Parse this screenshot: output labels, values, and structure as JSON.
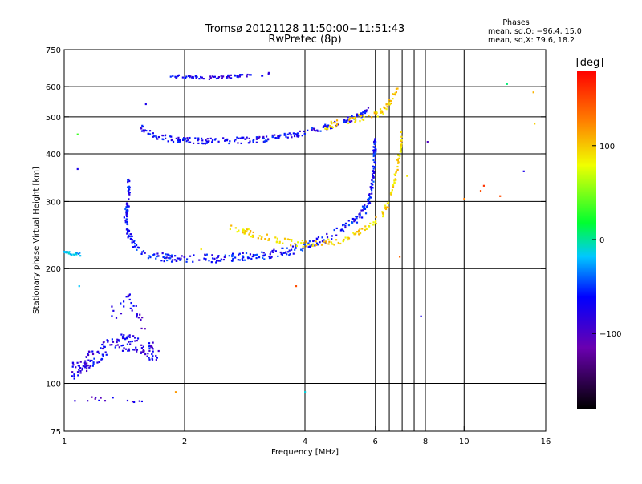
{
  "chart_data": {
    "type": "scatter",
    "title": "Tromsø 20121128 11:50:00−11:51:43",
    "subtitle": "RwPretec (8p)",
    "xlabel": "Frequency [MHz]",
    "ylabel": "Stationary phase Virtual Height [km]",
    "x_scale": "log",
    "y_scale": "log",
    "xlim": [
      1,
      16
    ],
    "ylim": [
      75,
      750
    ],
    "x_ticks": [
      {
        "value": 1,
        "label": "1"
      },
      {
        "value": 2,
        "label": "2"
      },
      {
        "value": 4,
        "label": "4"
      },
      {
        "value": 6,
        "label": "6"
      },
      {
        "value": 8,
        "label": "8"
      },
      {
        "value": 10,
        "label": "10"
      },
      {
        "value": 16,
        "label": "16"
      }
    ],
    "x_grid": [
      2,
      4,
      6,
      6.5,
      7,
      7.5,
      8,
      10
    ],
    "y_ticks": [
      {
        "value": 75,
        "label": "75"
      },
      {
        "value": 100,
        "label": "100"
      },
      {
        "value": 200,
        "label": "200"
      },
      {
        "value": 300,
        "label": "300"
      },
      {
        "value": 400,
        "label": "400"
      },
      {
        "value": 500,
        "label": "500"
      },
      {
        "value": 600,
        "label": "600"
      },
      {
        "value": 750,
        "label": "750"
      }
    ],
    "y_grid": [
      100,
      200,
      300,
      400,
      500,
      600
    ],
    "grid": true,
    "legend": {
      "title": "Phases",
      "lines": [
        "mean, sd,O: −96.4, 15.0",
        "mean, sd,X:  79.6, 18.2"
      ]
    },
    "colorbar": {
      "label": "[deg]",
      "range": [
        -180,
        180
      ],
      "ticks": [
        {
          "value": 100,
          "label": "100"
        },
        {
          "value": 0,
          "label": "0"
        },
        {
          "value": -100,
          "label": "−100"
        }
      ]
    },
    "traces": [
      {
        "points": [
          [
            1.8,
            640
          ],
          [
            2.0,
            636
          ],
          [
            2.2,
            633
          ],
          [
            2.5,
            636
          ],
          [
            2.8,
            642
          ],
          [
            3.1,
            647
          ],
          [
            3.3,
            650
          ]
        ],
        "phase": -110,
        "count": 70,
        "jitter": 0.01
      },
      {
        "points": [
          [
            1.55,
            470
          ],
          [
            1.7,
            445
          ],
          [
            1.9,
            435
          ],
          [
            2.2,
            432
          ],
          [
            2.5,
            433
          ],
          [
            2.8,
            434
          ],
          [
            3.2,
            438
          ],
          [
            3.6,
            445
          ],
          [
            4.0,
            455
          ],
          [
            4.5,
            470
          ],
          [
            5.0,
            485
          ],
          [
            5.5,
            505
          ],
          [
            5.8,
            525
          ]
        ],
        "phase": -105,
        "count": 230,
        "jitter": 0.018
      },
      {
        "points": [
          [
            4.4,
            470
          ],
          [
            5.0,
            485
          ],
          [
            5.6,
            500
          ],
          [
            6.0,
            505
          ],
          [
            6.3,
            520
          ],
          [
            6.6,
            555
          ],
          [
            6.8,
            590
          ]
        ],
        "phase": 100,
        "count": 70,
        "jitter": 0.02
      },
      {
        "points": [
          [
            1.45,
            340
          ],
          [
            1.45,
            300
          ],
          [
            1.42,
            270
          ],
          [
            1.45,
            245
          ],
          [
            1.5,
            230
          ],
          [
            1.6,
            218
          ],
          [
            1.8,
            213
          ],
          [
            2.0,
            212
          ],
          [
            2.4,
            213
          ],
          [
            2.8,
            215
          ],
          [
            3.2,
            217
          ],
          [
            3.6,
            222
          ],
          [
            4.0,
            228
          ],
          [
            4.5,
            240
          ],
          [
            5.0,
            255
          ],
          [
            5.4,
            270
          ],
          [
            5.7,
            290
          ],
          [
            5.85,
            320
          ],
          [
            5.95,
            370
          ],
          [
            6.0,
            450
          ]
        ],
        "phase": -100,
        "count": 380,
        "jitter": 0.025
      },
      {
        "points": [
          [
            2.6,
            258
          ],
          [
            3.0,
            245
          ],
          [
            3.4,
            238
          ],
          [
            3.8,
            233
          ],
          [
            4.3,
            232
          ],
          [
            4.8,
            236
          ],
          [
            5.3,
            245
          ],
          [
            5.8,
            258
          ],
          [
            6.2,
            275
          ],
          [
            6.5,
            300
          ],
          [
            6.7,
            340
          ],
          [
            6.9,
            400
          ],
          [
            7.0,
            450
          ]
        ],
        "phase": 95,
        "count": 170,
        "jitter": 0.02
      },
      {
        "points": [
          [
            1.05,
            107
          ],
          [
            1.15,
            115
          ],
          [
            1.25,
            122
          ],
          [
            1.35,
            128
          ],
          [
            1.45,
            128
          ],
          [
            1.55,
            125
          ],
          [
            1.65,
            122
          ],
          [
            1.7,
            118
          ]
        ],
        "phase": -110,
        "count": 160,
        "jitter": 0.05
      },
      {
        "points": [
          [
            1.0,
            222
          ],
          [
            1.05,
            219
          ],
          [
            1.1,
            218
          ]
        ],
        "phase": -60,
        "count": 22,
        "jitter": 0.01
      },
      {
        "points": [
          [
            1.05,
            90
          ],
          [
            1.4,
            92
          ],
          [
            1.6,
            90
          ]
        ],
        "phase": -120,
        "count": 14,
        "jitter": 0.02
      },
      {
        "points": [
          [
            1.3,
            150
          ],
          [
            1.45,
            165
          ],
          [
            1.6,
            140
          ]
        ],
        "phase": -115,
        "count": 28,
        "jitter": 0.04
      }
    ],
    "points": [
      [
        1.08,
        365,
        -110
      ],
      [
        1.08,
        450,
        20
      ],
      [
        1.09,
        180,
        -60
      ],
      [
        1.6,
        540,
        -110
      ],
      [
        1.9,
        95,
        120
      ],
      [
        2.2,
        225,
        90
      ],
      [
        3.8,
        180,
        150
      ],
      [
        4.0,
        95,
        -50
      ],
      [
        7.2,
        350,
        90
      ],
      [
        7.8,
        150,
        -110
      ],
      [
        8.1,
        430,
        -130
      ],
      [
        11.0,
        320,
        150
      ],
      [
        11.2,
        330,
        160
      ],
      [
        12.3,
        310,
        150
      ],
      [
        12.8,
        610,
        -20
      ],
      [
        14.1,
        360,
        -110
      ],
      [
        14.9,
        580,
        110
      ],
      [
        15.0,
        480,
        100
      ],
      [
        6.9,
        215,
        140
      ],
      [
        10.0,
        305,
        130
      ]
    ]
  }
}
